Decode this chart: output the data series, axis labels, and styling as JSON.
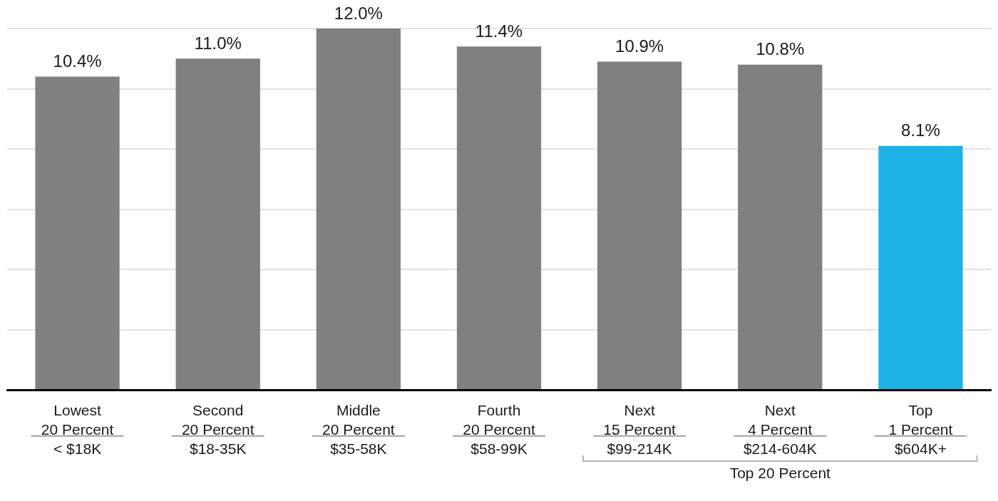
{
  "chart_data": {
    "type": "bar",
    "categories": [
      "Lowest\n20 Percent\n< $18K",
      "Second\n20 Percent\n$18-35K",
      "Middle\n20 Percent\n$35-58K",
      "Fourth\n20 Percent\n$58-99K",
      "Next\n15 Percent\n$99-214K",
      "Next\n4 Percent\n$214-604K",
      "Top\n1 Percent\n$604K+"
    ],
    "values": [
      10.4,
      11.0,
      12.0,
      11.4,
      10.9,
      10.8,
      8.1
    ],
    "colors": [
      "#808083",
      "#808083",
      "#808083",
      "#808083",
      "#808083",
      "#808083",
      "#1eb2e8"
    ],
    "value_labels": [
      "10.4%",
      "11.0%",
      "12.0%",
      "11.4%",
      "10.9%",
      "10.8%",
      "8.1%"
    ],
    "ylim": [
      0,
      12
    ],
    "yticks": [
      0,
      2,
      4,
      6,
      8,
      10,
      12
    ],
    "grid": "y",
    "tick_labels": "x",
    "legend": false,
    "annotations": [
      "Top 20 Percent"
    ]
  }
}
